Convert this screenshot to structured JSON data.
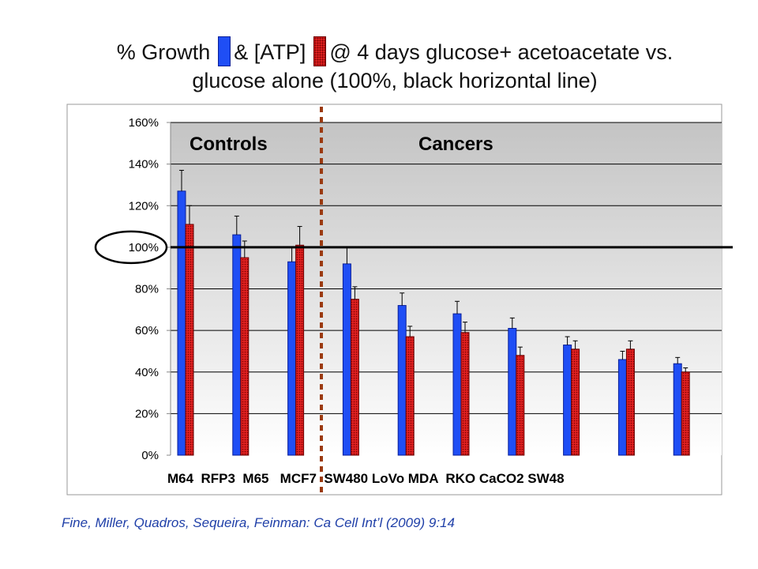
{
  "title": {
    "part1": "% Growth",
    "part2": "& [ATP]",
    "part3": "@ 4 days glucose+ acetoacetate vs.",
    "line2": "glucose alone (100%, black horizontal line)"
  },
  "citation": "Fine, Miller, Quadros, Sequeira, Feinman: Ca Cell Int’l (2009) 9:14",
  "chart_data": {
    "type": "bar",
    "categories": [
      "M64",
      "RFP3",
      "M65",
      "MCF7",
      "SW480",
      "LoVo",
      "MDA",
      "RKO",
      "CaCO2",
      "SW48"
    ],
    "category_labels_line": "M64  RFP3  M65   MCF7  SW480 LoVo MDA  RKO CaCO2 SW48",
    "series": [
      {
        "color": "#1f4ef5",
        "values": [
          127,
          106,
          93,
          92,
          72,
          68,
          61,
          53,
          46,
          44
        ],
        "errors": [
          10,
          9,
          7,
          8,
          6,
          6,
          5,
          4,
          4,
          3
        ]
      },
      {
        "color": "#e02020",
        "values": [
          111,
          95,
          101,
          75,
          57,
          59,
          48,
          51,
          51,
          40
        ],
        "errors": [
          9,
          8,
          9,
          6,
          5,
          5,
          4,
          4,
          4,
          2
        ]
      }
    ],
    "ylim": [
      0,
      160
    ],
    "yticks": [
      "0%",
      "20%",
      "40%",
      "60%",
      "80%",
      "100%",
      "120%",
      "140%",
      "160%"
    ],
    "ytick_values": [
      0,
      20,
      40,
      60,
      80,
      100,
      120,
      140,
      160
    ],
    "reference_line": 100,
    "annotations": {
      "controls": "Controls",
      "cancers": "Cancers"
    },
    "grid": true,
    "background": "gradient"
  }
}
